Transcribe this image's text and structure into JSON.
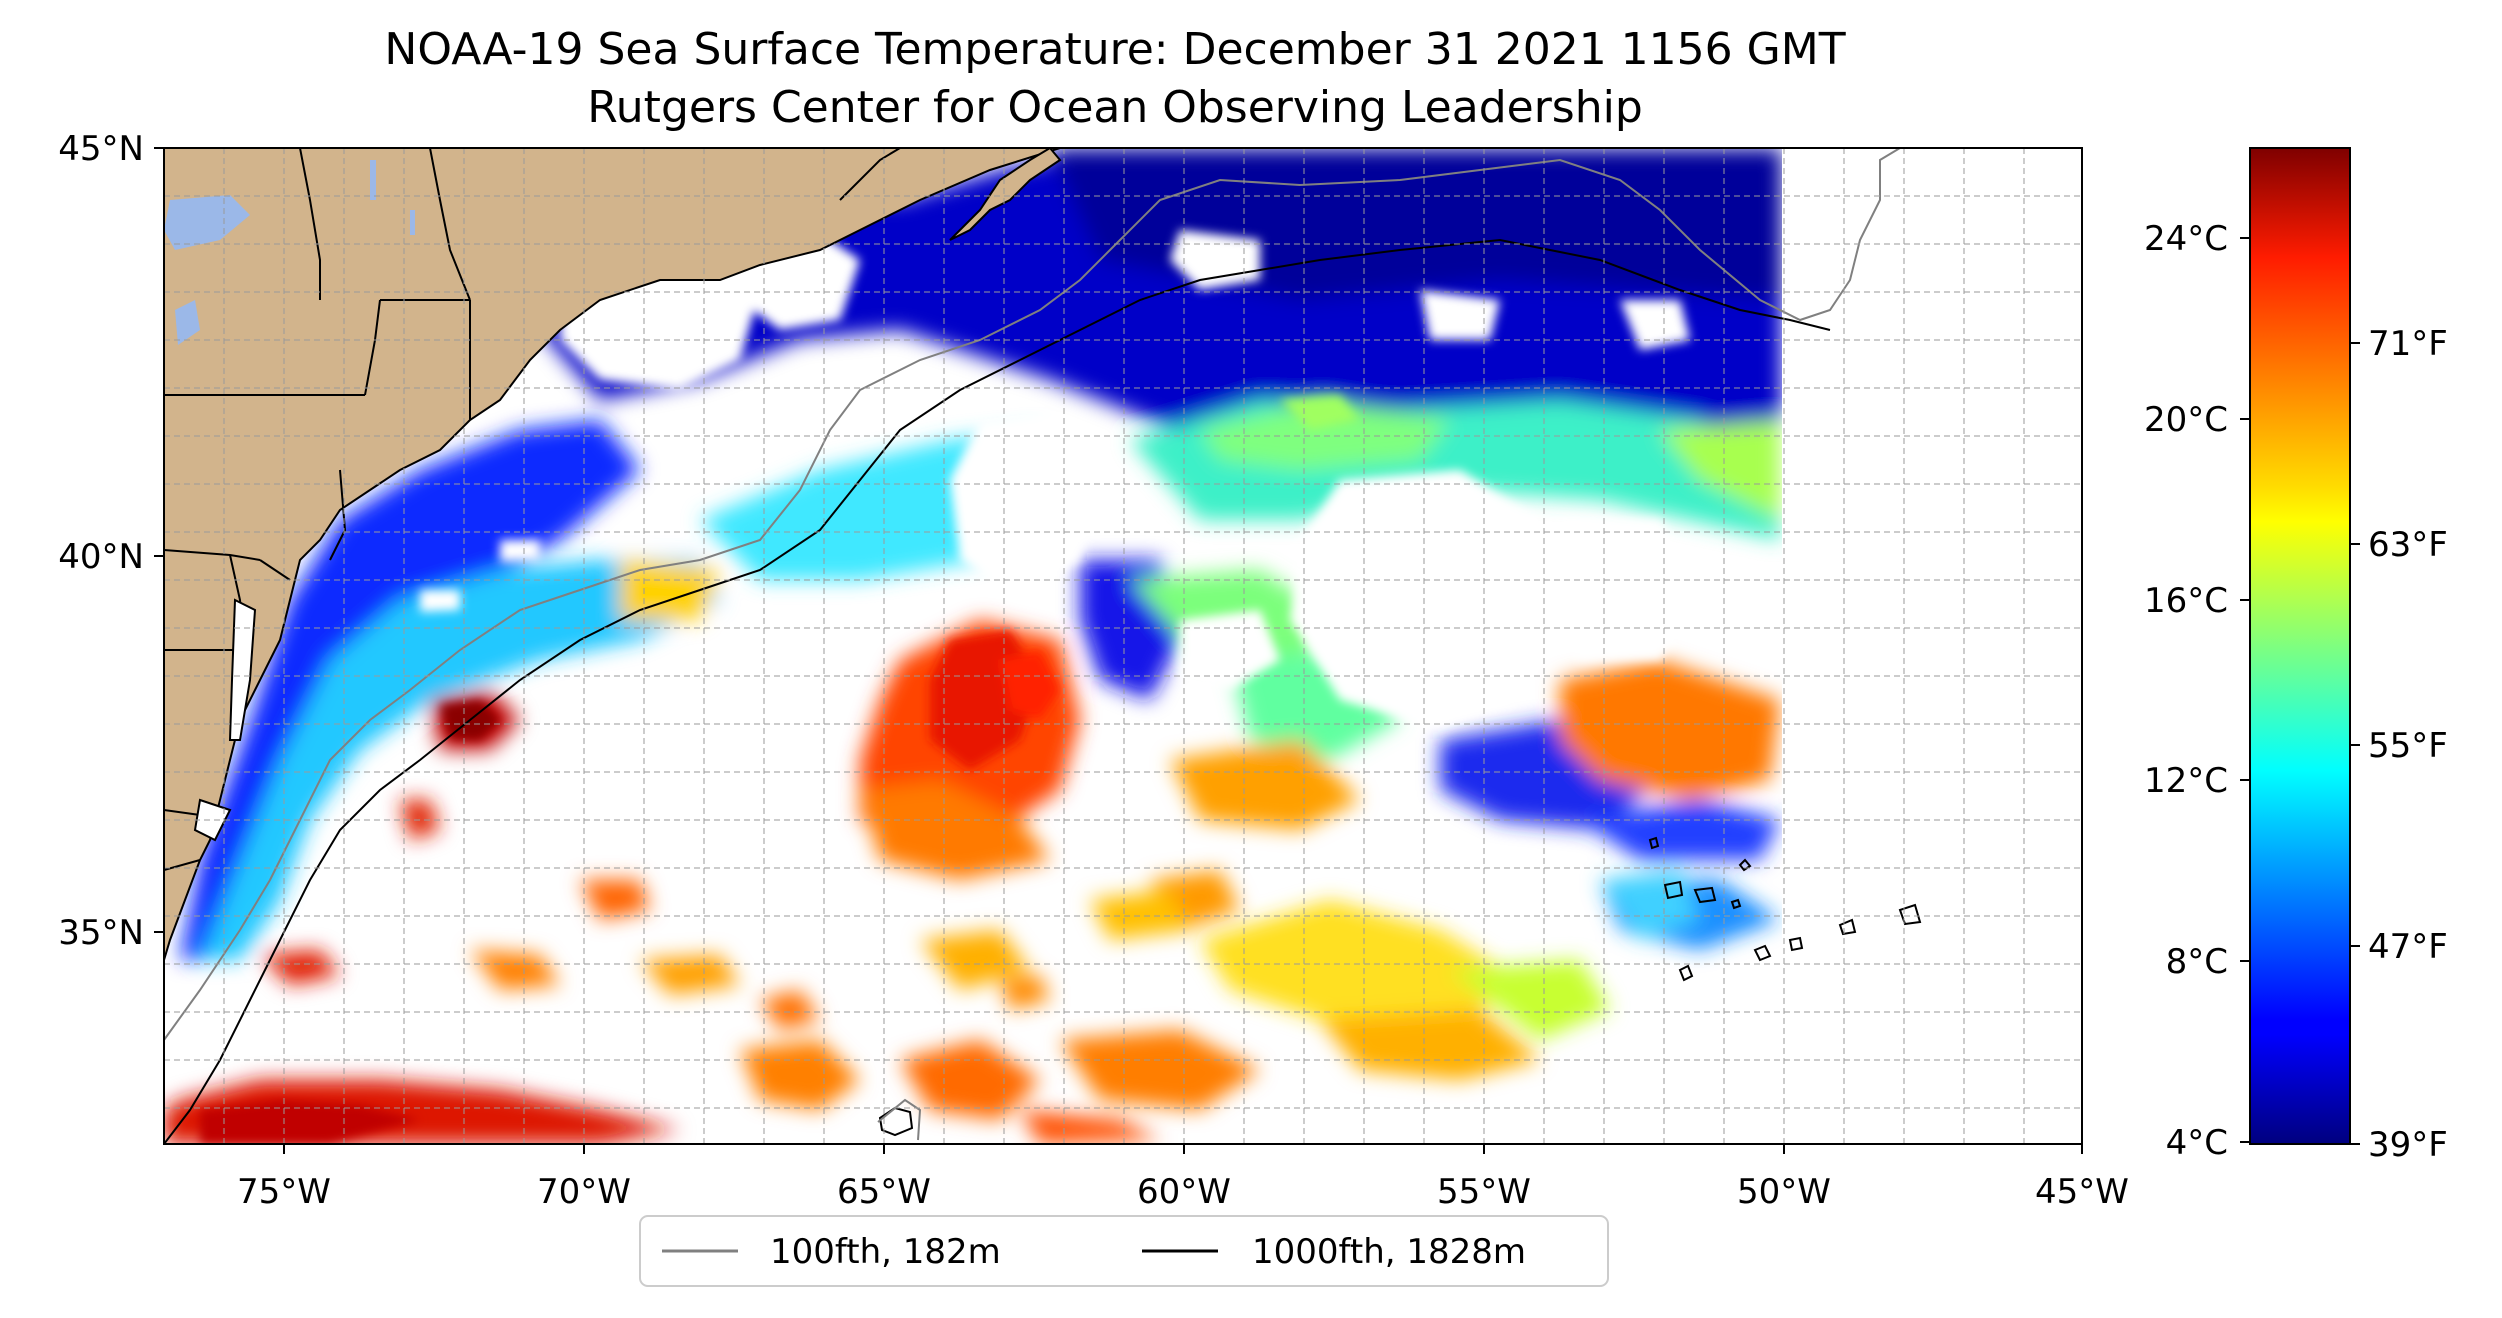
{
  "title": {
    "line1": "NOAA-19 Sea Surface Temperature: December 31 2021 1156 GMT",
    "line2": "Rutgers Center for Ocean Observing Leadership"
  },
  "map": {
    "lon_range": [
      -77,
      -45
    ],
    "lat_range": [
      32.5,
      45
    ],
    "lon_ticks": [
      "75°W",
      "70°W",
      "65°W",
      "60°W",
      "55°W",
      "50°W",
      "45°W"
    ],
    "lat_ticks": [
      "45°N",
      "40°N",
      "35°N"
    ],
    "land_color": "#d2b48c",
    "gridlines": true
  },
  "colorbar": {
    "colormap": "jet",
    "celsius_ticks": [
      "24°C",
      "20°C",
      "16°C",
      "12°C",
      "8°C",
      "4°C"
    ],
    "fahrenheit_ticks": [
      "71°F",
      "63°F",
      "55°F",
      "47°F",
      "39°F"
    ],
    "range_c": [
      4,
      26
    ]
  },
  "legend": {
    "items": [
      {
        "label": "100fth, 182m",
        "color": "#808080"
      },
      {
        "label": "1000fth, 1828m",
        "color": "#000000"
      }
    ]
  }
}
